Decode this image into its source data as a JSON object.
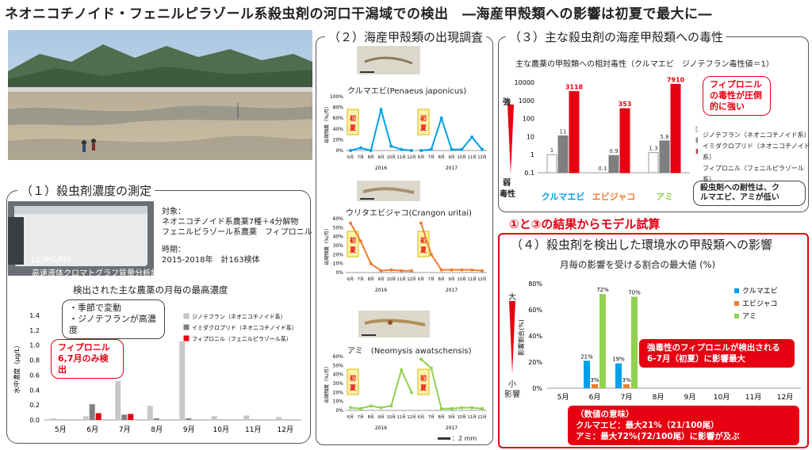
{
  "header": {
    "title": "ネオニコチノイド・フェニルピラゾール系殺虫剤の河口干潟域での検出　―海産甲殻類への影響は初夏で最大に―"
  },
  "sec1": {
    "title": "（１）殺虫剤濃度の測定",
    "device_label1": "LC/MS/MS",
    "device_label2": "高速液体クロマトグラフ質量分析計",
    "target_head": "対象：",
    "target_line1": "ネオニコチノイド系農薬7種＋4分解物",
    "target_line2": "フェニルピラゾール系農薬　フィプロニル",
    "period_head": "時期：",
    "period_line": "2015-2018年　計163検体",
    "chart_title": "検出された主な農薬の月毎の最高濃度",
    "note1": "・季節で変動",
    "note2": "・ジノテフランが高濃度",
    "fip_note1": "フィプロニル",
    "fip_note2": "6,7月のみ検出"
  },
  "sec2": {
    "title": "（２）海産甲殻類の出現調査",
    "sp1": "クルマエビ(Penaeus japonicus)",
    "sp2": "ウリタエビジャコ(Crangon uritai)",
    "sp3": "アミ　(Neomysis awatschensis)",
    "early": "初夏",
    "scale": "：2 mm"
  },
  "sec3": {
    "title": "（３）主な殺虫剤の海産甲殻類への毒性",
    "chart_title": "主な農薬の甲殻類への相対毒性（クルマエビ　ジノテフラン毒性値＝1）",
    "strong": "強",
    "weak": "弱",
    "tox": "毒性",
    "note1": "フィプロニル",
    "note2": "の毒性が圧倒",
    "note3": "的に強い",
    "res1": "殺虫剤への耐性は、ク",
    "res2": "ルマエビ、アミが低い"
  },
  "model": {
    "title": "①と③の結果からモデル試算"
  },
  "sec4": {
    "title": "（４）殺虫剤を検出した環境水の甲殻類への影響",
    "chart_title": "月毎の影響を受ける割合の最大値 (%)",
    "big": "大",
    "small": "小",
    "impact": "影響",
    "callout1": "強毒性のフィプロニルが検出される",
    "callout2": "6-7月（初夏）に影響最大",
    "meaning_head": "（数値の意味）",
    "meaning1": "クルマエビ：最大21%（21/100尾）",
    "meaning2": "アミ：最大72%(72/100尾）に影響が及ぶ"
  },
  "chart_data": [
    {
      "type": "bar",
      "title": "検出された主な農薬の月毎の最高濃度",
      "ylabel": "水中濃度（μg/L）",
      "ylim": [
        0,
        1.4
      ],
      "yticks": [
        "0.0",
        "0.2",
        "0.4",
        "0.6",
        "0.8",
        "1.0",
        "1.2",
        "1.4"
      ],
      "categories": [
        "5月",
        "6月",
        "7月",
        "8月",
        "9月",
        "10月",
        "11月",
        "12月"
      ],
      "series": [
        {
          "name": "ジノテフラン（ネオニコチノイド系）",
          "color": "#c8c8c8",
          "values": [
            0.02,
            0.05,
            0.52,
            0.19,
            1.05,
            0.05,
            0.06,
            0.04
          ]
        },
        {
          "name": "イミダクロプリド（ネオニコチノイド系）",
          "color": "#7f7f7f",
          "values": [
            0.005,
            0.21,
            0.07,
            0.02,
            0.02,
            0.005,
            0.005,
            0.005
          ]
        },
        {
          "name": "フィプロニル（フェニルピラゾール系）",
          "color": "#e60012",
          "values": [
            0,
            0.09,
            0.08,
            0,
            0,
            0,
            0,
            0
          ]
        }
      ],
      "legend": "top-right"
    },
    {
      "type": "line",
      "title": "クルマエビ(Penaeus japonicus)",
      "ylabel": "出現頻度（%/月）",
      "ylim": [
        0,
        100
      ],
      "yticks": [
        "0%",
        "20%",
        "40%",
        "60%",
        "80%",
        "100%"
      ],
      "x": [
        "6月",
        "7月",
        "8月",
        "9月",
        "10月",
        "11月",
        "12月"
      ],
      "groups": [
        "2016",
        "2017"
      ],
      "color": "#00a0e9",
      "values_2016": [
        0,
        5,
        0,
        76,
        8,
        2,
        0
      ],
      "values_2017": [
        0,
        2,
        60,
        2,
        2,
        25,
        2
      ]
    },
    {
      "type": "line",
      "title": "ウリタエビジャコ(Crangon uritai)",
      "ylabel": "出現頻度（%/月）",
      "ylim": [
        0,
        60
      ],
      "yticks": [
        "0%",
        "10%",
        "20%",
        "30%",
        "40%",
        "50%",
        "60%"
      ],
      "x": [
        "6月",
        "7月",
        "8月",
        "9月",
        "10月",
        "11月",
        "12月"
      ],
      "groups": [
        "2016",
        "2017"
      ],
      "color": "#ed7d31",
      "values_2016": [
        55,
        35,
        10,
        2,
        3,
        2,
        2
      ],
      "values_2017": [
        55,
        20,
        3,
        3,
        3,
        3,
        2
      ]
    },
    {
      "type": "line",
      "title": "アミ　(Neomysis awatschensis)",
      "ylabel": "出現頻度（%/月）",
      "ylim": [
        0,
        60
      ],
      "yticks": [
        "0%",
        "10%",
        "20%",
        "30%",
        "40%",
        "50%",
        "60%"
      ],
      "x": [
        "6月",
        "7月",
        "8月",
        "9月",
        "10月",
        "11月",
        "12月"
      ],
      "groups": [
        "2016",
        "2017"
      ],
      "color": "#92d050",
      "values_2016": [
        3,
        2,
        5,
        3,
        5,
        45,
        20
      ],
      "values_2017": [
        57,
        47,
        2,
        2,
        3,
        3,
        2
      ]
    },
    {
      "type": "bar",
      "title": "主な農薬の甲殻類への相対毒性（クルマエビ　ジノテフラン毒性値＝1）",
      "scale": "log",
      "ylim": [
        0.1,
        10000
      ],
      "yticks": [
        "0.1",
        "1",
        "10",
        "100",
        "1000",
        "10000"
      ],
      "categories": [
        "クルマエビ",
        "エビジャコ",
        "アミ"
      ],
      "category_colors": [
        "#00a0e9",
        "#ed7d31",
        "#92d050"
      ],
      "series": [
        {
          "name": "ジノテフラン（ネオニコチノイド系）",
          "color": "#ffffff",
          "values": [
            1,
            0.1,
            1.3
          ],
          "labels": [
            "1",
            "0.1",
            "1.3"
          ]
        },
        {
          "name": "イミダクロプリド（ネオニコチノイド系）",
          "color": "#7f7f7f",
          "values": [
            11,
            0.9,
            5.8
          ],
          "labels": [
            "11",
            "0.9",
            "5.8"
          ]
        },
        {
          "name": "フィプロニル（フェニルピラゾール系）",
          "color": "#e60012",
          "values": [
            3118,
            353,
            7910
          ],
          "labels": [
            "3118",
            "353",
            "7910"
          ]
        }
      ],
      "legend": "right"
    },
    {
      "type": "bar",
      "title": "月毎の影響を受ける割合の最大値 (%)",
      "ylabel": "影響割合(%)",
      "ylim": [
        0,
        80
      ],
      "yticks": [
        "0%",
        "20%",
        "40%",
        "60%",
        "80%"
      ],
      "categories": [
        "5月",
        "6月",
        "7月",
        "8月",
        "9月",
        "10月",
        "11月",
        "12月"
      ],
      "series": [
        {
          "name": "クルマエビ",
          "color": "#00a0e9",
          "values": [
            0,
            21,
            19,
            0,
            0,
            0,
            0,
            0
          ]
        },
        {
          "name": "エビジャコ",
          "color": "#ed7d31",
          "values": [
            0,
            3,
            3,
            0,
            0,
            0,
            0,
            0
          ]
        },
        {
          "name": "アミ",
          "color": "#92d050",
          "values": [
            0,
            72,
            70,
            0,
            0,
            0,
            0,
            0
          ]
        }
      ],
      "labels": [
        {
          "text": "21%"
        },
        {
          "text": "3%"
        },
        {
          "text": "72%"
        },
        {
          "text": "19%"
        },
        {
          "text": "3%"
        },
        {
          "text": "70%"
        }
      ],
      "legend": "top-right"
    }
  ]
}
